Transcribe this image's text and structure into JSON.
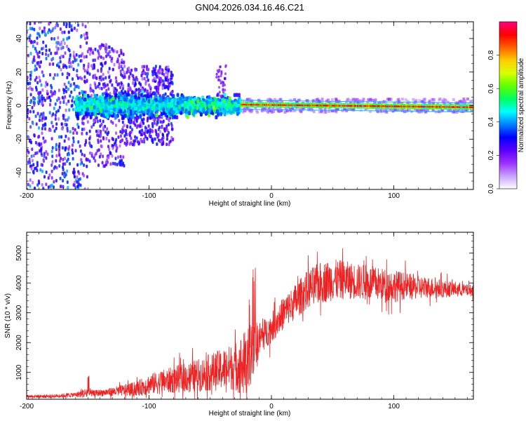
{
  "figure": {
    "title": "GN04.2026.034.16.46.C21"
  },
  "chart_data": [
    {
      "type": "heatmap",
      "xlabel": "Height of straight line (km)",
      "ylabel": "Frequency (Hz)",
      "xlim": [
        -200,
        165
      ],
      "ylim": [
        -50,
        50
      ],
      "xticks": [
        -200,
        -100,
        0,
        100
      ],
      "yticks": [
        -40,
        -20,
        0,
        20,
        40
      ],
      "colorbar": {
        "label": "Normalized spectral amplitude",
        "range": [
          0,
          1
        ],
        "ticks": [
          "0.0",
          "0.2",
          "0.4",
          "0.6",
          "0.8"
        ],
        "tick_values": [
          0,
          0.2,
          0.4,
          0.6,
          0.8
        ],
        "colors": [
          "#ffffff",
          "#c8a0ff",
          "#9b30ff",
          "#5a00ff",
          "#0000ff",
          "#0080ff",
          "#00ffff",
          "#00ff60",
          "#60ff00",
          "#d8ff00",
          "#ffcc00",
          "#ff6000",
          "#ff0000",
          "#ff0080"
        ]
      },
      "description_of_pattern": "Broad noisy spread below -150 km; energy concentrated near 0 Hz from -160 km upward, narrowing to a strong line near 0 Hz above -25 km"
    },
    {
      "type": "line",
      "xlabel": "Height of straight line (km)",
      "ylabel": "SNR (10 * v/v)",
      "xlim": [
        -200,
        165
      ],
      "ylim": [
        100,
        5700
      ],
      "xticks": [
        -200,
        -100,
        0,
        100
      ],
      "yticks": [
        1000,
        2000,
        3000,
        4000,
        5000
      ],
      "color": "#ee2222",
      "series": [
        {
          "name": "SNR",
          "x": [
            -200,
            -180,
            -160,
            -150,
            -145,
            -130,
            -110,
            -100,
            -80,
            -60,
            -40,
            -30,
            -20,
            -15,
            -10,
            -5,
            0,
            10,
            20,
            30,
            40,
            50,
            60,
            70,
            80,
            90,
            100,
            110,
            120,
            130,
            140,
            150,
            160,
            165
          ],
          "mid": [
            200,
            200,
            250,
            320,
            300,
            350,
            450,
            600,
            750,
            900,
            1100,
            1200,
            1300,
            1800,
            2100,
            2300,
            2500,
            3000,
            3400,
            3800,
            4000,
            4100,
            4100,
            4050,
            4000,
            3950,
            3900,
            3900,
            3850,
            3850,
            3800,
            3800,
            3750,
            3750
          ],
          "amp": [
            50,
            60,
            80,
            200,
            100,
            150,
            250,
            350,
            450,
            550,
            700,
            800,
            1200,
            900,
            600,
            500,
            500,
            550,
            600,
            650,
            700,
            700,
            650,
            600,
            600,
            550,
            550,
            450,
            400,
            350,
            300,
            250,
            200,
            200
          ]
        }
      ]
    }
  ]
}
